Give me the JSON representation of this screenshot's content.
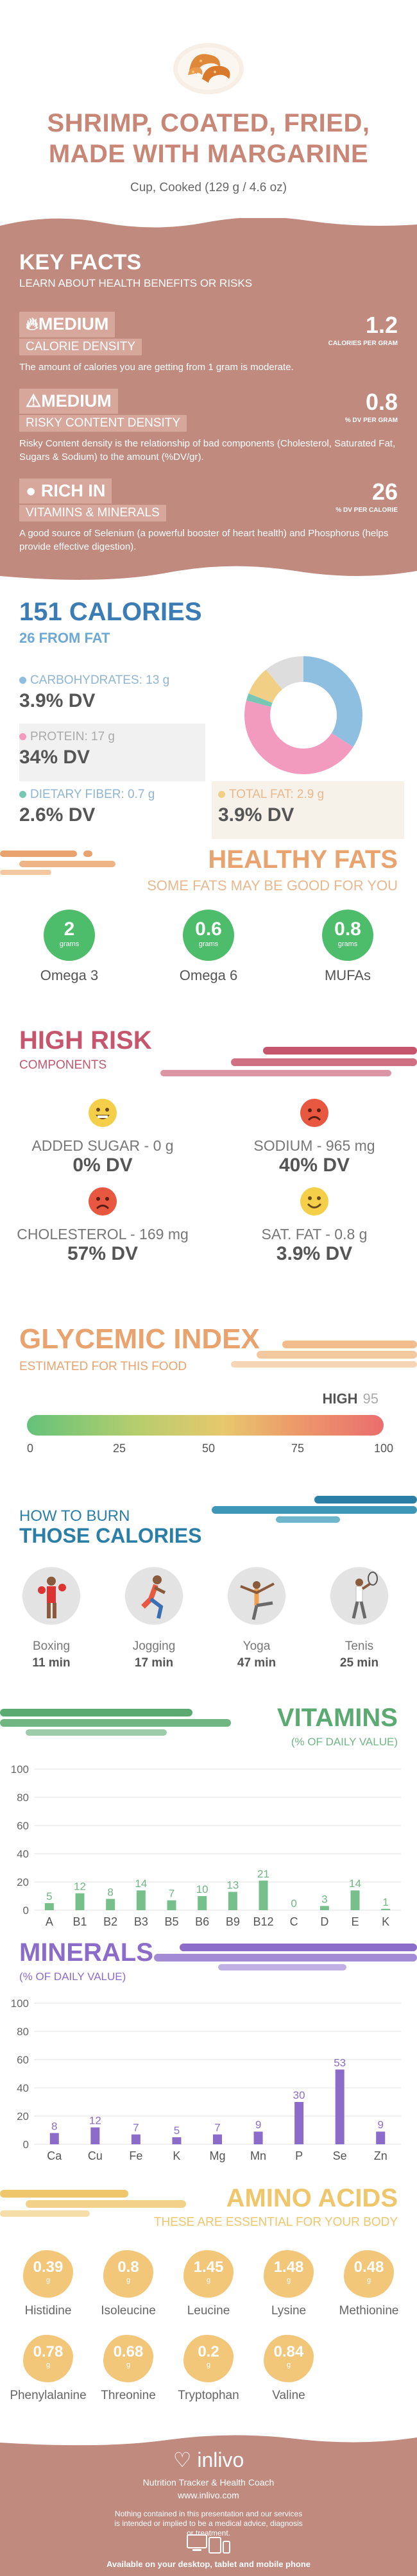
{
  "header": {
    "title_line1": "SHRIMP, COATED, FRIED,",
    "title_line2": "MADE WITH MARGARINE",
    "serving": "Cup, Cooked (129 g / 4.6 oz)"
  },
  "key_facts": {
    "title": "KEY FACTS",
    "subtitle": "LEARN ABOUT HEALTH BENEFITS OR RISKS",
    "facts": [
      {
        "level": "MEDIUM",
        "name": "CALORIE DENSITY",
        "value": "1.2",
        "unit": "CALORIES PER GRAM",
        "desc": "The amount of calories you are getting from 1 gram is moderate.",
        "icon": "flame-icon"
      },
      {
        "level": "MEDIUM",
        "name": "RISKY CONTENT DENSITY",
        "value": "0.8",
        "unit": "% DV PER GRAM",
        "desc": "Risky Content density is the relationship of bad components (Cholesterol, Saturated Fat, Sugars & Sodium) to the amount (%DV/gr).",
        "icon": "warning-icon"
      },
      {
        "level": "RICH IN",
        "name": "VITAMINS & MINERALS",
        "value": "26",
        "unit": "% DV PER CALORIE",
        "desc": "A good source of Selenium (a powerful booster of heart health) and Phosphorus (helps provide effective digestion).",
        "icon": "apple-icon"
      }
    ]
  },
  "calories": {
    "title": "151 CALORIES",
    "subtitle": "26 FROM FAT",
    "macros": [
      {
        "label": "CARBOHYDRATES: 13 g",
        "value": "3.9% DV",
        "color": "#8fbfe0"
      },
      {
        "label": "PROTEIN: 17 g",
        "value": "34% DV",
        "color": "#f29bbf"
      },
      {
        "label": "DIETARY FIBER: 0.7 g",
        "value": "2.6% DV",
        "color": "#78c7b4"
      },
      {
        "label": "TOTAL FAT: 2.9 g",
        "value": "3.9% DV",
        "color": "#f1cf84"
      }
    ],
    "donut": [
      {
        "name": "carbs",
        "fraction": 0.34,
        "color": "#8fbfe0"
      },
      {
        "name": "protein",
        "fraction": 0.45,
        "color": "#f29bbf"
      },
      {
        "name": "fiber",
        "fraction": 0.02,
        "color": "#78c7b4"
      },
      {
        "name": "fat",
        "fraction": 0.08,
        "color": "#f1cf84"
      },
      {
        "name": "other",
        "fraction": 0.11,
        "color": "#dddddd"
      }
    ]
  },
  "fats": {
    "title": "HEALTHY FATS",
    "subtitle": "SOME FATS MAY BE GOOD FOR YOU",
    "items": [
      {
        "value": "2",
        "unit": "grams",
        "name": "Omega 3"
      },
      {
        "value": "0.6",
        "unit": "grams",
        "name": "Omega 6"
      },
      {
        "value": "0.8",
        "unit": "grams",
        "name": "MUFAs"
      }
    ]
  },
  "risk": {
    "title": "HIGH RISK",
    "subtitle": "COMPONENTS",
    "items": [
      {
        "label": "ADDED SUGAR - 0 g",
        "value": "0% DV",
        "face": "happy-face-icon",
        "color": "#f6cf4a"
      },
      {
        "label": "SODIUM - 965 mg",
        "value": "40% DV",
        "face": "sad-face-icon",
        "color": "#e8573f"
      },
      {
        "label": "CHOLESTEROL - 169 mg",
        "value": "57% DV",
        "face": "sad-face-icon",
        "color": "#e8573f"
      },
      {
        "label": "SAT. FAT - 0.8 g",
        "value": "3.9% DV",
        "face": "smile-face-icon",
        "color": "#f6cf4a"
      }
    ]
  },
  "glycemic": {
    "title": "GLYCEMIC INDEX",
    "subtitle": "ESTIMATED FOR THIS FOOD",
    "level": "HIGH",
    "value": "95",
    "ticks": [
      "0",
      "25",
      "50",
      "75",
      "100"
    ]
  },
  "burn": {
    "title1": "HOW TO BURN",
    "title2": "THOSE CALORIES",
    "activities": [
      {
        "name": "Boxing",
        "time": "11 min",
        "icon": "boxing-icon"
      },
      {
        "name": "Jogging",
        "time": "17 min",
        "icon": "jogging-icon"
      },
      {
        "name": "Yoga",
        "time": "47 min",
        "icon": "yoga-icon"
      },
      {
        "name": "Tenis",
        "time": "25 min",
        "icon": "tennis-icon"
      }
    ]
  },
  "vitamins": {
    "title": "VITAMINS",
    "subtitle": "(% OF DAILY VALUE)"
  },
  "minerals": {
    "title": "MINERALS",
    "subtitle": "(% OF DAILY VALUE)"
  },
  "chart_data": [
    {
      "type": "bar",
      "categories": [
        "A",
        "B1",
        "B2",
        "B3",
        "B5",
        "B6",
        "B9",
        "B12",
        "C",
        "D",
        "E",
        "K"
      ],
      "values": [
        5,
        12,
        8,
        14,
        7,
        10,
        13,
        21,
        0,
        3,
        14,
        1
      ],
      "ylim": [
        0,
        100
      ],
      "yticks": [
        0,
        20,
        40,
        60,
        80,
        100
      ],
      "color": "#78c08b",
      "grid": true
    },
    {
      "type": "bar",
      "categories": [
        "Ca",
        "Cu",
        "Fe",
        "K",
        "Mg",
        "Mn",
        "P",
        "Se",
        "Zn"
      ],
      "values": [
        8,
        12,
        7,
        5,
        7,
        9,
        30,
        53,
        9
      ],
      "ylim": [
        0,
        100
      ],
      "yticks": [
        0,
        20,
        40,
        60,
        80,
        100
      ],
      "color": "#8b6cc9",
      "grid": true
    }
  ],
  "amino": {
    "title": "AMINO ACIDS",
    "subtitle": "THESE ARE ESSENTIAL FOR YOUR BODY",
    "items": [
      {
        "value": "0.39",
        "unit": "g",
        "name": "Histidine"
      },
      {
        "value": "0.8",
        "unit": "g",
        "name": "Isoleucine"
      },
      {
        "value": "1.45",
        "unit": "g",
        "name": "Leucine"
      },
      {
        "value": "1.48",
        "unit": "g",
        "name": "Lysine"
      },
      {
        "value": "0.48",
        "unit": "g",
        "name": "Methionine"
      },
      {
        "value": "0.78",
        "unit": "g",
        "name": "Phenylalanine"
      },
      {
        "value": "0.68",
        "unit": "g",
        "name": "Threonine"
      },
      {
        "value": "0.2",
        "unit": "g",
        "name": "Tryptophan"
      },
      {
        "value": "0.84",
        "unit": "g",
        "name": "Valine"
      }
    ]
  },
  "footer": {
    "brand": "inlivo",
    "tagline": "Nutrition Tracker & Health Coach",
    "url": "www.inlivo.com",
    "disclaimer": "Nothing contained in this presentation and our services is intended or implied to be a medical advice, diagnosis or treatment.",
    "available": "Available on your desktop, tablet and mobile phone"
  }
}
